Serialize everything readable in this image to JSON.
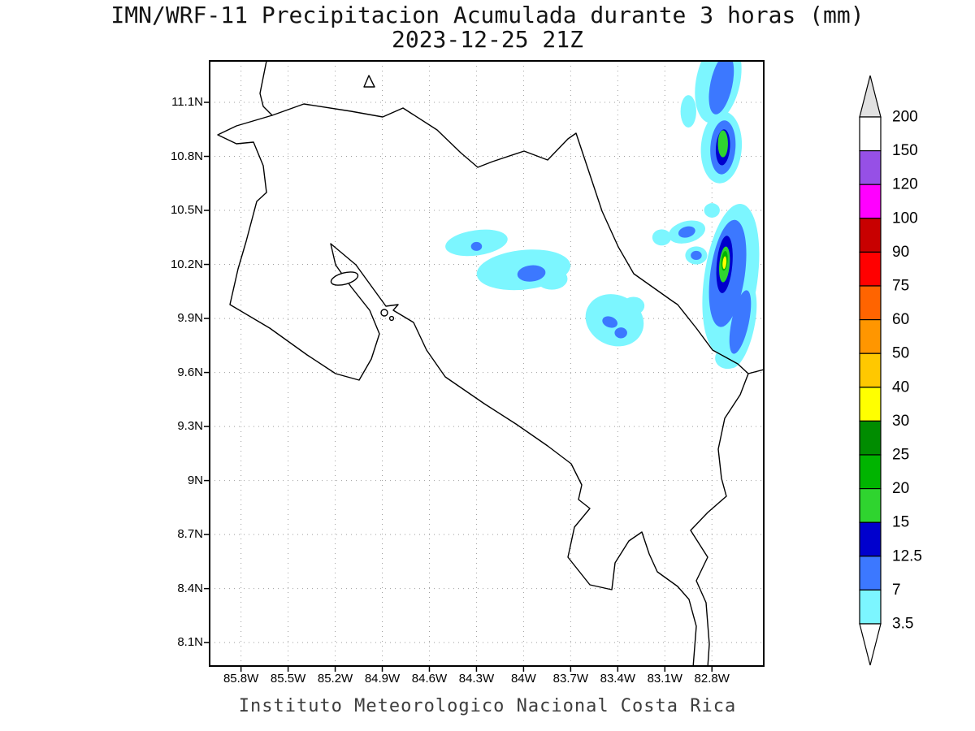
{
  "title": {
    "line1": "IMN/WRF-11 Precipitacion Acumulada durante 3 horas (mm)",
    "line2": "2023-12-25 21Z"
  },
  "footer": {
    "caption": "Instituto Meteorologico Nacional Costa Rica"
  },
  "map": {
    "lat_ticks": [
      "11.1N",
      "10.8N",
      "10.5N",
      "10.2N",
      "9.9N",
      "9.6N",
      "9.3N",
      "9N",
      "8.7N",
      "8.4N",
      "8.1N"
    ],
    "lon_ticks": [
      "85.8W",
      "85.5W",
      "85.2W",
      "84.9W",
      "84.6W",
      "84.3W",
      "84W",
      "83.7W",
      "83.4W",
      "83.1W",
      "82.8W"
    ]
  },
  "colorbar": {
    "units": "mm",
    "boundary_labels_top_to_bottom": [
      "200",
      "150",
      "120",
      "100",
      "90",
      "75",
      "60",
      "50",
      "40",
      "30",
      "25",
      "20",
      "15",
      "12.5",
      "7",
      "3.5"
    ],
    "segments_ascending": [
      {
        "level": 3.5,
        "color": "#7cf6ff"
      },
      {
        "level": 7,
        "color": "#3c78ff"
      },
      {
        "level": 12.5,
        "color": "#0000cd"
      },
      {
        "level": 15,
        "color": "#2fd42f"
      },
      {
        "level": 20,
        "color": "#00b400"
      },
      {
        "level": 25,
        "color": "#008c00"
      },
      {
        "level": 30,
        "color": "#ffff00"
      },
      {
        "level": 40,
        "color": "#ffc800"
      },
      {
        "level": 50,
        "color": "#ff9600"
      },
      {
        "level": 60,
        "color": "#ff6400"
      },
      {
        "level": 75,
        "color": "#ff0000"
      },
      {
        "level": 90,
        "color": "#c80000"
      },
      {
        "level": 100,
        "color": "#ff00ff"
      },
      {
        "level": 120,
        "color": "#9650e6"
      },
      {
        "level": 150,
        "color": "#ffffff"
      }
    ],
    "arrow_above_color": "#e1e1e1",
    "arrow_below_color": "#ffffff"
  },
  "chart_data": {
    "type": "filled_contour_map",
    "model": "IMN/WRF-11",
    "variable": "Precipitacion Acumulada durante 3 horas",
    "units": "mm",
    "valid_time": "2023-12-25 21Z",
    "region": "Costa Rica",
    "extent": {
      "lon_west": 86.0,
      "lon_east": 82.47,
      "lat_north": 11.33,
      "lat_south": 7.97
    },
    "contour_levels": [
      3.5,
      7,
      12.5,
      15,
      20,
      25,
      30,
      40,
      50,
      60,
      75,
      90,
      100,
      120,
      150,
      200
    ],
    "max_shaded_value_band": "30-40 mm near 10.21N 82.72W (Caribbean coast)",
    "features": [
      {
        "name": "central-valley-cyan-west",
        "lon": 84.3,
        "lat": 10.32,
        "rx": 0.2,
        "ry": 0.07,
        "rot": -8,
        "level": 3.5
      },
      {
        "name": "central-valley-cyan-main",
        "lon": 84.0,
        "lat": 10.17,
        "rx": 0.3,
        "ry": 0.11,
        "rot": -6,
        "level": 3.5
      },
      {
        "name": "central-valley-cyan-tip",
        "lon": 83.82,
        "lat": 10.12,
        "rx": 0.1,
        "ry": 0.06,
        "rot": 0,
        "level": 3.5
      },
      {
        "name": "central-valley-blue-core",
        "lon": 83.95,
        "lat": 10.15,
        "rx": 0.09,
        "ry": 0.045,
        "rot": -6,
        "level": 7
      },
      {
        "name": "central-valley-blue-speck",
        "lon": 84.3,
        "lat": 10.3,
        "rx": 0.035,
        "ry": 0.025,
        "rot": 0,
        "level": 7
      },
      {
        "name": "turrialba-cyan",
        "lon": 83.42,
        "lat": 9.89,
        "rx": 0.19,
        "ry": 0.14,
        "rot": 25,
        "level": 3.5
      },
      {
        "name": "turrialba-cyan-small",
        "lon": 83.3,
        "lat": 9.97,
        "rx": 0.07,
        "ry": 0.05,
        "rot": 0,
        "level": 3.5
      },
      {
        "name": "turrialba-blue-1",
        "lon": 83.45,
        "lat": 9.88,
        "rx": 0.05,
        "ry": 0.03,
        "rot": 20,
        "level": 7
      },
      {
        "name": "turrialba-blue-2",
        "lon": 83.38,
        "lat": 9.82,
        "rx": 0.04,
        "ry": 0.03,
        "rot": 0,
        "level": 7
      },
      {
        "name": "caribbean-north-band-cyan",
        "lon": 82.76,
        "lat": 11.22,
        "rx": 0.14,
        "ry": 0.24,
        "rot": 12,
        "level": 3.5
      },
      {
        "name": "caribbean-north-west-cyan",
        "lon": 82.95,
        "lat": 11.05,
        "rx": 0.05,
        "ry": 0.09,
        "rot": 0,
        "level": 3.5
      },
      {
        "name": "caribbean-north-band-blue",
        "lon": 82.74,
        "lat": 11.2,
        "rx": 0.07,
        "ry": 0.17,
        "rot": 12,
        "level": 7
      },
      {
        "name": "caribbean-upper-cell-cyan",
        "lon": 82.74,
        "lat": 10.85,
        "rx": 0.13,
        "ry": 0.2,
        "rot": 4,
        "level": 3.5
      },
      {
        "name": "caribbean-upper-cell-blue",
        "lon": 82.73,
        "lat": 10.85,
        "rx": 0.08,
        "ry": 0.15,
        "rot": 4,
        "level": 7
      },
      {
        "name": "caribbean-upper-cell-darkblue",
        "lon": 82.73,
        "lat": 10.85,
        "rx": 0.045,
        "ry": 0.1,
        "rot": 4,
        "level": 12.5
      },
      {
        "name": "caribbean-upper-cell-green",
        "lon": 82.73,
        "lat": 10.87,
        "rx": 0.032,
        "ry": 0.075,
        "rot": 0,
        "level": 15
      },
      {
        "name": "coastal-left-cyan-1",
        "lon": 82.96,
        "lat": 10.38,
        "rx": 0.12,
        "ry": 0.06,
        "rot": -15,
        "level": 3.5
      },
      {
        "name": "coastal-left-cyan-2",
        "lon": 83.12,
        "lat": 10.35,
        "rx": 0.06,
        "ry": 0.045,
        "rot": 0,
        "level": 3.5
      },
      {
        "name": "coastal-left-blue",
        "lon": 82.96,
        "lat": 10.38,
        "rx": 0.055,
        "ry": 0.03,
        "rot": -15,
        "level": 7
      },
      {
        "name": "coastal-left-cyan-3",
        "lon": 82.9,
        "lat": 10.25,
        "rx": 0.07,
        "ry": 0.05,
        "rot": 0,
        "level": 3.5
      },
      {
        "name": "coastal-left-blue-2",
        "lon": 82.9,
        "lat": 10.25,
        "rx": 0.035,
        "ry": 0.025,
        "rot": 0,
        "level": 7
      },
      {
        "name": "coastal-mid-cyan-speck",
        "lon": 82.8,
        "lat": 10.5,
        "rx": 0.05,
        "ry": 0.04,
        "rot": 0,
        "level": 3.5
      },
      {
        "name": "caribbean-main-band-cyan",
        "lon": 82.68,
        "lat": 10.12,
        "rx": 0.17,
        "ry": 0.42,
        "rot": 8,
        "level": 3.5
      },
      {
        "name": "caribbean-main-band-blue",
        "lon": 82.7,
        "lat": 10.15,
        "rx": 0.11,
        "ry": 0.3,
        "rot": 8,
        "level": 7
      },
      {
        "name": "caribbean-main-band-darkblue",
        "lon": 82.72,
        "lat": 10.2,
        "rx": 0.05,
        "ry": 0.16,
        "rot": 5,
        "level": 12.5
      },
      {
        "name": "caribbean-main-band-green",
        "lon": 82.72,
        "lat": 10.2,
        "rx": 0.033,
        "ry": 0.1,
        "rot": 5,
        "level": 15
      },
      {
        "name": "caribbean-main-band-green2",
        "lon": 82.72,
        "lat": 10.22,
        "rx": 0.02,
        "ry": 0.055,
        "rot": 5,
        "level": 20
      },
      {
        "name": "caribbean-main-band-yellow",
        "lon": 82.72,
        "lat": 10.21,
        "rx": 0.012,
        "ry": 0.035,
        "rot": 5,
        "level": 30
      },
      {
        "name": "caribbean-south-cyan",
        "lon": 82.62,
        "lat": 9.86,
        "rx": 0.09,
        "ry": 0.24,
        "rot": 12,
        "level": 3.5
      },
      {
        "name": "caribbean-south-blue",
        "lon": 82.62,
        "lat": 9.88,
        "rx": 0.055,
        "ry": 0.18,
        "rot": 12,
        "level": 7
      },
      {
        "name": "caribbean-bottom-cyan",
        "lon": 82.7,
        "lat": 9.68,
        "rx": 0.08,
        "ry": 0.06,
        "rot": 0,
        "level": 3.5
      }
    ]
  }
}
